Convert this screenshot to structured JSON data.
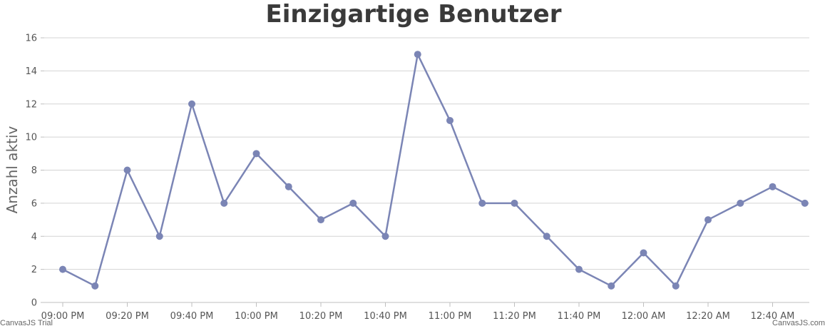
{
  "chart_data": {
    "type": "line",
    "title": "Einzigartige Benutzer",
    "ylabel": "Anzahl aktiv",
    "xlabel": "",
    "ylim": [
      0,
      16
    ],
    "yticks": [
      0,
      2,
      4,
      6,
      8,
      10,
      12,
      14,
      16
    ],
    "grid": true,
    "x": [
      "09:00 PM",
      "09:10 PM",
      "09:20 PM",
      "09:30 PM",
      "09:40 PM",
      "09:50 PM",
      "10:00 PM",
      "10:10 PM",
      "10:20 PM",
      "10:30 PM",
      "10:40 PM",
      "10:50 PM",
      "11:00 PM",
      "11:10 PM",
      "11:20 PM",
      "11:30 PM",
      "11:40 PM",
      "11:50 PM",
      "12:00 AM",
      "12:10 AM",
      "12:20 AM",
      "12:30 AM",
      "12:40 AM",
      "12:50 AM"
    ],
    "xtick_labels": [
      "09:00 PM",
      "09:20 PM",
      "09:40 PM",
      "10:00 PM",
      "10:20 PM",
      "10:40 PM",
      "11:00 PM",
      "11:20 PM",
      "11:40 PM",
      "12:00 AM",
      "12:20 AM",
      "12:40 AM"
    ],
    "series": [
      {
        "values": [
          2,
          1,
          8,
          4,
          12,
          6,
          9,
          7,
          5,
          6,
          4,
          15,
          11,
          6,
          6,
          4,
          2,
          1,
          3,
          1,
          5,
          6,
          7,
          6
        ],
        "color": "#7b85b5"
      }
    ]
  },
  "credits": {
    "left": "CanvasJS Trial",
    "right": "CanvasJS.com"
  }
}
